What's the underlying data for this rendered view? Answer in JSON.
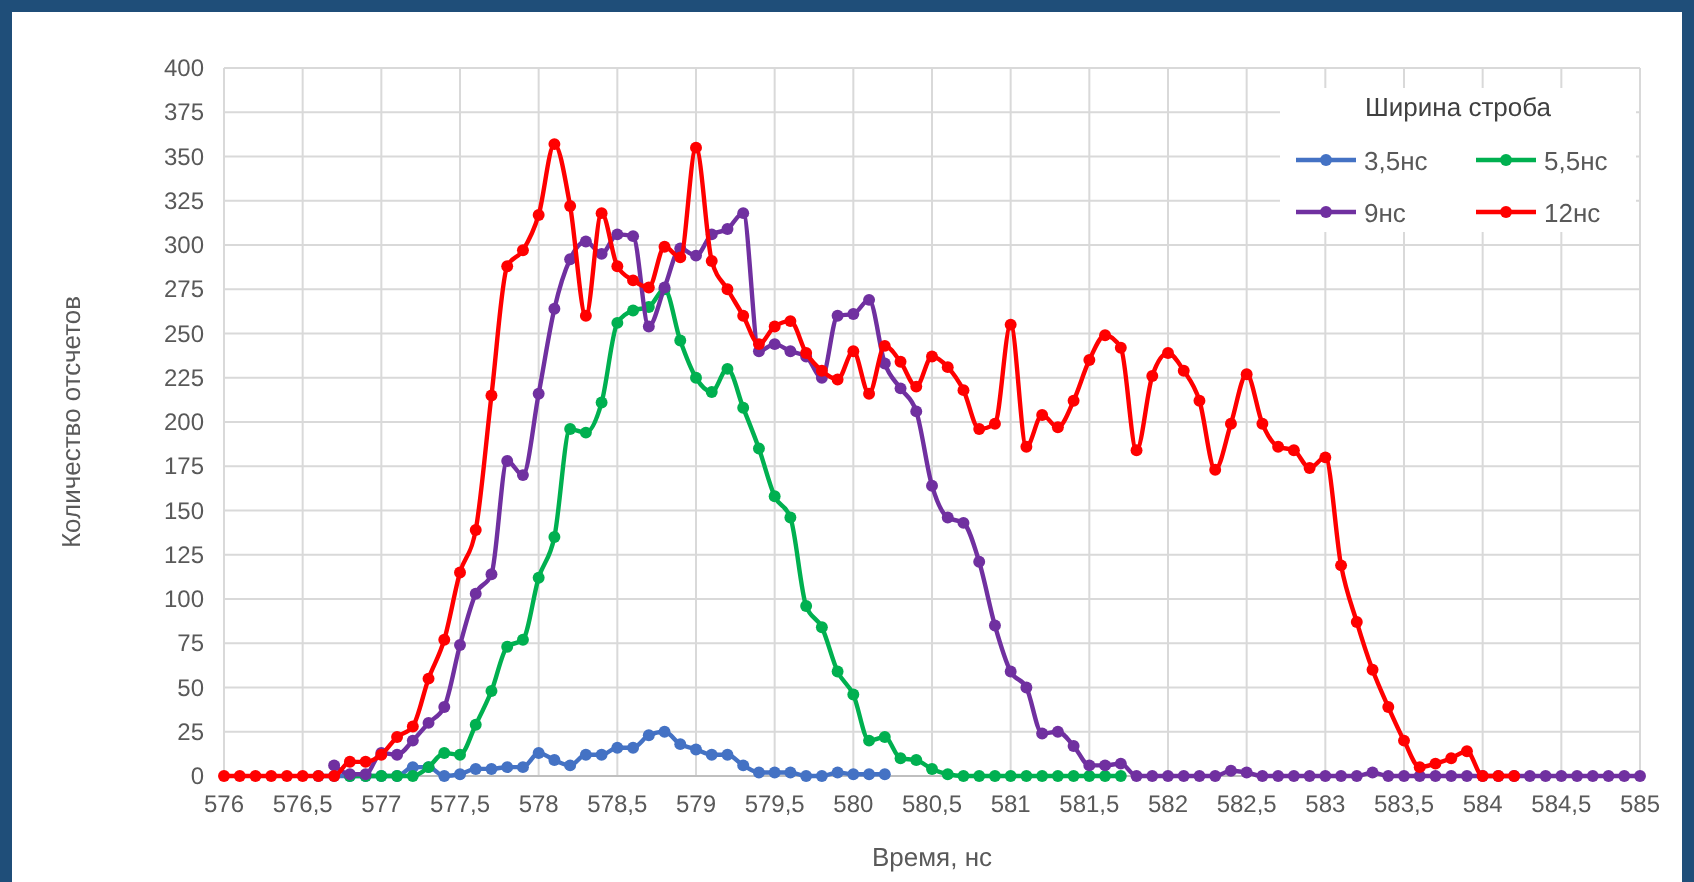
{
  "chart_data": {
    "type": "line",
    "xlabel": "Время, нс",
    "ylabel": "Количество отсчетов",
    "legend_title": "Ширина строба",
    "legend": "top right",
    "grid": true,
    "marker": "circle",
    "line_style": "solid",
    "x": [
      576,
      576.1,
      576.2,
      576.3,
      576.4,
      576.5,
      576.6,
      576.7,
      576.8,
      576.9,
      577,
      577.1,
      577.2,
      577.3,
      577.4,
      577.5,
      577.6,
      577.7,
      577.8,
      577.9,
      578,
      578.1,
      578.2,
      578.3,
      578.4,
      578.5,
      578.6,
      578.7,
      578.8,
      578.9,
      579,
      579.1,
      579.2,
      579.3,
      579.4,
      579.5,
      579.6,
      579.7,
      579.8,
      579.9,
      580,
      580.1,
      580.2,
      580.3,
      580.4,
      580.5,
      580.6,
      580.7,
      580.8,
      580.9,
      581,
      581.1,
      581.2,
      581.3,
      581.4,
      581.5,
      581.6,
      581.7,
      581.8,
      581.9,
      582,
      582.1,
      582.2,
      582.3,
      582.4,
      582.5,
      582.6,
      582.7,
      582.8,
      582.9,
      583,
      583.1,
      583.2,
      583.3,
      583.4,
      583.5,
      583.6,
      583.7,
      583.8,
      583.9,
      584,
      584.1,
      584.2,
      584.3,
      584.4,
      584.5,
      584.6,
      584.7,
      584.8,
      584.9,
      585
    ],
    "xlim": [
      576,
      585
    ],
    "xticks": [
      576,
      {
        "value": 576.5,
        "label": "576,5"
      },
      577,
      {
        "value": 577.5,
        "label": "577,5"
      },
      578,
      {
        "value": 578.5,
        "label": "578,5"
      },
      579,
      {
        "value": 579.5,
        "label": "579,5"
      },
      580,
      {
        "value": 580.5,
        "label": "580,5"
      },
      581,
      {
        "value": 581.5,
        "label": "581,5"
      },
      582,
      {
        "value": 582.5,
        "label": "582,5"
      },
      583,
      {
        "value": 583.5,
        "label": "583,5"
      },
      584,
      {
        "value": 584.5,
        "label": "584,5"
      },
      585
    ],
    "ylim": [
      0,
      400
    ],
    "yticks": [
      0,
      25,
      50,
      75,
      100,
      125,
      150,
      175,
      200,
      225,
      250,
      275,
      300,
      325,
      350,
      375,
      400
    ],
    "series": [
      {
        "name": "3,5нс",
        "color": "#4472c4",
        "values": [
          null,
          null,
          null,
          null,
          null,
          null,
          0,
          0,
          0,
          0,
          0,
          0,
          5,
          5,
          0,
          1,
          4,
          4,
          5,
          5,
          13,
          9,
          6,
          12,
          12,
          16,
          16,
          23,
          25,
          18,
          15,
          12,
          12,
          6,
          2,
          2,
          2,
          0,
          0,
          2,
          1,
          1,
          1,
          null,
          null,
          null,
          null,
          null,
          null,
          null,
          null,
          null,
          null,
          null,
          null,
          null,
          null,
          null,
          null,
          null,
          null,
          null,
          null,
          null,
          null,
          null,
          null,
          null,
          null,
          null,
          null,
          null,
          null,
          null,
          null,
          null,
          null,
          null,
          null,
          null,
          null,
          null,
          null,
          null,
          null,
          null,
          null,
          null,
          null,
          null,
          null
        ]
      },
      {
        "name": "5,5нс",
        "color": "#00b050",
        "values": [
          null,
          null,
          null,
          null,
          null,
          null,
          null,
          null,
          0,
          0,
          0,
          0,
          0,
          5,
          13,
          12,
          29,
          48,
          73,
          77,
          112,
          135,
          196,
          194,
          211,
          256,
          263,
          265,
          275,
          246,
          225,
          217,
          230,
          208,
          185,
          158,
          146,
          96,
          84,
          59,
          46,
          20,
          22,
          10,
          9,
          4,
          1,
          0,
          0,
          0,
          0,
          0,
          0,
          0,
          0,
          0,
          0,
          0,
          null,
          null,
          null,
          null,
          null,
          null,
          null,
          null,
          null,
          null,
          null,
          null,
          null,
          null,
          null,
          null,
          null,
          null,
          null,
          null,
          null,
          null,
          null,
          null,
          null,
          null,
          null,
          null,
          null,
          null,
          null,
          null,
          null
        ]
      },
      {
        "name": "9нс",
        "color": "#7030a0",
        "values": [
          null,
          null,
          null,
          null,
          null,
          null,
          null,
          6,
          1,
          1,
          13,
          12,
          20,
          30,
          39,
          74,
          103,
          114,
          178,
          170,
          216,
          264,
          292,
          302,
          295,
          306,
          305,
          254,
          276,
          298,
          294,
          306,
          309,
          318,
          240,
          244,
          240,
          237,
          225,
          260,
          261,
          269,
          233,
          219,
          206,
          164,
          146,
          143,
          121,
          85,
          59,
          50,
          24,
          25,
          17,
          6,
          6,
          7,
          0,
          0,
          0,
          0,
          0,
          0,
          3,
          2,
          0,
          0,
          0,
          0,
          0,
          0,
          0,
          2,
          0,
          0,
          0,
          0,
          0,
          0,
          0,
          0,
          0,
          0,
          0,
          0,
          0,
          0,
          0,
          0,
          0
        ]
      },
      {
        "name": "12нс",
        "color": "#ff0000",
        "values": [
          0,
          0,
          0,
          0,
          0,
          0,
          0,
          0,
          8,
          8,
          12,
          22,
          28,
          55,
          77,
          115,
          139,
          215,
          288,
          297,
          317,
          357,
          322,
          260,
          318,
          288,
          280,
          276,
          299,
          293,
          355,
          291,
          275,
          260,
          244,
          254,
          257,
          239,
          229,
          224,
          240,
          216,
          243,
          234,
          220,
          237,
          231,
          218,
          196,
          199,
          255,
          186,
          204,
          197,
          212,
          235,
          249,
          242,
          184,
          226,
          239,
          229,
          212,
          173,
          199,
          227,
          199,
          186,
          184,
          174,
          180,
          119,
          87,
          60,
          39,
          20,
          5,
          7,
          10,
          14,
          0,
          0,
          0,
          null,
          null,
          null,
          null,
          null,
          null,
          null,
          null
        ]
      }
    ]
  }
}
